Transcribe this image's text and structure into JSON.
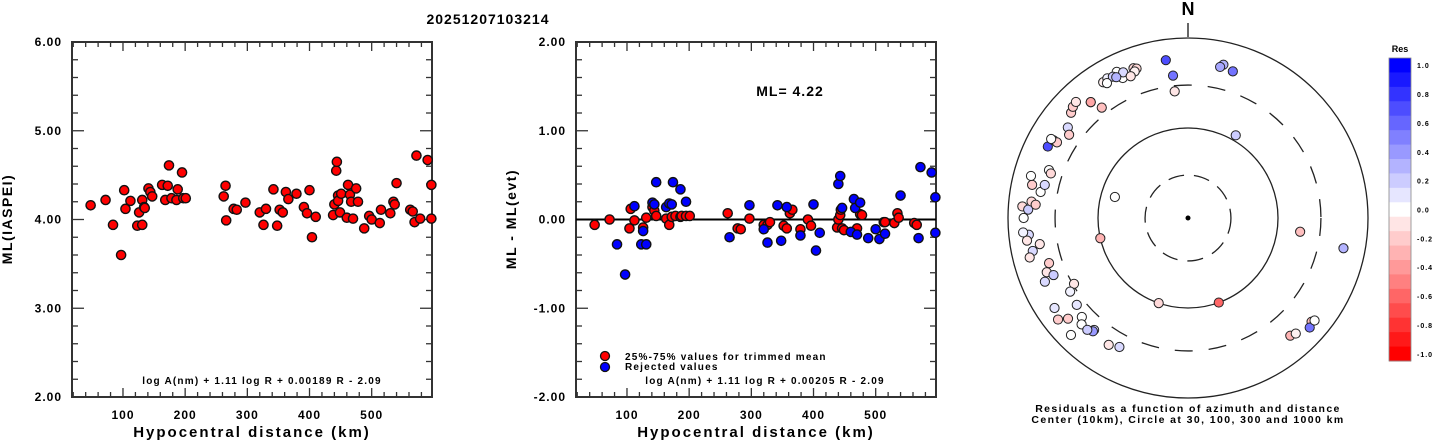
{
  "title": "20251207103214",
  "chart_data": [
    {
      "type": "scatter",
      "title": "",
      "xlabel": "Hypocentral distance (km)",
      "ylabel": "ML(IASPEI)",
      "xlim": [
        18,
        597
      ],
      "ylim": [
        2.0,
        6.0
      ],
      "xticks": [
        "100",
        "200",
        "300",
        "400",
        "500"
      ],
      "yticks": [
        "2.00",
        "3.00",
        "4.00",
        "5.00",
        "6.00"
      ],
      "annotation": "log A(nm) + 1.11 log R + 0.00189 R - 2.09",
      "series": [
        {
          "name": "ML values",
          "color": "#ff0000",
          "points": [
            [
              48,
              4.16
            ],
            [
              72,
              4.22
            ],
            [
              84,
              3.94
            ],
            [
              97,
              3.6
            ],
            [
              102,
              4.33
            ],
            [
              104,
              4.12
            ],
            [
              112,
              4.21
            ],
            [
              123,
              3.93
            ],
            [
              126,
              4.08
            ],
            [
              131,
              3.94
            ],
            [
              131,
              4.22
            ],
            [
              134,
              4.14
            ],
            [
              135,
              4.13
            ],
            [
              141,
              4.35
            ],
            [
              144,
              4.31
            ],
            [
              147,
              4.26
            ],
            [
              163,
              4.39
            ],
            [
              168,
              4.22
            ],
            [
              172,
              4.38
            ],
            [
              174,
              4.61
            ],
            [
              178,
              4.24
            ],
            [
              186,
              4.22
            ],
            [
              188,
              4.34
            ],
            [
              195,
              4.53
            ],
            [
              197,
              4.24
            ],
            [
              201,
              4.24
            ],
            [
              262,
              4.26
            ],
            [
              265,
              4.38
            ],
            [
              266,
              3.99
            ],
            [
              278,
              4.12
            ],
            [
              283,
              4.11
            ],
            [
              297,
              4.19
            ],
            [
              320,
              4.08
            ],
            [
              326,
              3.94
            ],
            [
              330,
              4.12
            ],
            [
              342,
              4.34
            ],
            [
              348,
              3.93
            ],
            [
              352,
              4.11
            ],
            [
              357,
              4.08
            ],
            [
              362,
              4.31
            ],
            [
              366,
              4.23
            ],
            [
              379,
              4.29
            ],
            [
              391,
              4.14
            ],
            [
              396,
              4.07
            ],
            [
              400,
              4.33
            ],
            [
              404,
              3.8
            ],
            [
              410,
              4.03
            ],
            [
              438,
              4.05
            ],
            [
              440,
              4.17
            ],
            [
              443,
              4.55
            ],
            [
              444,
              4.65
            ],
            [
              446,
              4.27
            ],
            [
              446,
              4.21
            ],
            [
              449,
              4.08
            ],
            [
              451,
              4.29
            ],
            [
              460,
              4.02
            ],
            [
              462,
              4.39
            ],
            [
              465,
              4.28
            ],
            [
              467,
              4.2
            ],
            [
              470,
              4.01
            ],
            [
              475,
              4.35
            ],
            [
              478,
              4.2
            ],
            [
              488,
              3.9
            ],
            [
              496,
              4.04
            ],
            [
              500,
              4.0
            ],
            [
              513,
              3.96
            ],
            [
              515,
              4.11
            ],
            [
              530,
              4.07
            ],
            [
              535,
              4.2
            ],
            [
              537,
              4.17
            ],
            [
              540,
              4.41
            ],
            [
              562,
              4.11
            ],
            [
              566,
              4.09
            ],
            [
              569,
              3.97
            ],
            [
              572,
              4.72
            ],
            [
              578,
              4.01
            ],
            [
              590,
              4.67
            ],
            [
              596,
              4.39
            ],
            [
              596,
              4.01
            ]
          ]
        }
      ]
    },
    {
      "type": "scatter",
      "title": "",
      "xlabel": "Hypocentral distance (km)",
      "ylabel": "ML - ML(evt)",
      "xlim": [
        18,
        597
      ],
      "ylim": [
        -2.0,
        2.0
      ],
      "xticks": [
        "100",
        "200",
        "300",
        "400",
        "500"
      ],
      "yticks": [
        "-2.00",
        "-1.00",
        "0.00",
        "1.00",
        "2.00"
      ],
      "reference_line": 0.0,
      "mean_label": "ML= 4.22",
      "annotation": "log A(nm) + 1.11 log R + 0.00205 R - 2.09",
      "legend": {
        "position": "bottom-left",
        "entries": [
          {
            "label": "25%-75% values for trimmed mean",
            "color": "#ff0000"
          },
          {
            "label": "Rejected values",
            "color": "#0000ff"
          }
        ]
      },
      "series": [
        {
          "name": "25%-75% values for trimmed mean",
          "color": "#ff0000",
          "points": [
            [
              48,
              -0.06
            ],
            [
              72,
              0.0
            ],
            [
              104,
              -0.1
            ],
            [
              106,
              0.12
            ],
            [
              112,
              -0.01
            ],
            [
              126,
              -0.09
            ],
            [
              131,
              0.02
            ],
            [
              141,
              0.14
            ],
            [
              144,
              0.1
            ],
            [
              147,
              0.04
            ],
            [
              163,
              0.01
            ],
            [
              168,
              -0.06
            ],
            [
              172,
              0.03
            ],
            [
              178,
              0.04
            ],
            [
              186,
              0.03
            ],
            [
              188,
              0.04
            ],
            [
              195,
              0.04
            ],
            [
              201,
              0.04
            ],
            [
              262,
              0.07
            ],
            [
              278,
              -0.1
            ],
            [
              283,
              -0.11
            ],
            [
              297,
              0.01
            ],
            [
              320,
              -0.06
            ],
            [
              326,
              -0.06
            ],
            [
              330,
              -0.03
            ],
            [
              352,
              -0.07
            ],
            [
              357,
              -0.1
            ],
            [
              362,
              0.07
            ],
            [
              366,
              0.11
            ],
            [
              379,
              -0.11
            ],
            [
              391,
              0.0
            ],
            [
              396,
              -0.07
            ],
            [
              438,
              -0.09
            ],
            [
              440,
              0.0
            ],
            [
              443,
              0.05
            ],
            [
              444,
              0.11
            ],
            [
              446,
              -0.1
            ],
            [
              449,
              -0.12
            ],
            [
              470,
              -0.1
            ],
            [
              475,
              0.06
            ],
            [
              478,
              0.05
            ],
            [
              513,
              -0.03
            ],
            [
              515,
              -0.03
            ],
            [
              530,
              -0.04
            ],
            [
              535,
              0.07
            ],
            [
              537,
              0.02
            ],
            [
              562,
              -0.04
            ],
            [
              566,
              -0.06
            ]
          ]
        },
        {
          "name": "Rejected values",
          "color": "#0000ff",
          "points": [
            [
              84,
              -0.28
            ],
            [
              97,
              -0.62
            ],
            [
              112,
              0.15
            ],
            [
              123,
              -0.28
            ],
            [
              126,
              -0.13
            ],
            [
              131,
              -0.28
            ],
            [
              141,
              0.19
            ],
            [
              144,
              0.17
            ],
            [
              147,
              0.42
            ],
            [
              163,
              0.14
            ],
            [
              168,
              0.18
            ],
            [
              172,
              0.17
            ],
            [
              174,
              0.42
            ],
            [
              186,
              0.34
            ],
            [
              195,
              0.2
            ],
            [
              265,
              -0.2
            ],
            [
              297,
              0.16
            ],
            [
              320,
              -0.11
            ],
            [
              326,
              -0.26
            ],
            [
              342,
              0.16
            ],
            [
              348,
              -0.24
            ],
            [
              357,
              0.14
            ],
            [
              379,
              -0.18
            ],
            [
              400,
              0.17
            ],
            [
              404,
              -0.35
            ],
            [
              410,
              -0.15
            ],
            [
              440,
              0.4
            ],
            [
              443,
              0.49
            ],
            [
              446,
              0.13
            ],
            [
              460,
              -0.14
            ],
            [
              465,
              0.23
            ],
            [
              467,
              0.13
            ],
            [
              470,
              -0.17
            ],
            [
              475,
              0.19
            ],
            [
              488,
              -0.21
            ],
            [
              500,
              -0.11
            ],
            [
              506,
              -0.22
            ],
            [
              515,
              -0.16
            ],
            [
              540,
              0.27
            ],
            [
              569,
              -0.21
            ],
            [
              572,
              0.59
            ],
            [
              590,
              0.53
            ],
            [
              596,
              0.25
            ],
            [
              596,
              -0.15
            ]
          ]
        }
      ]
    },
    {
      "type": "scatter",
      "title": "N",
      "subtitle": "Residuals as a function of azimuth and distance",
      "caption": "Center (10km), Circle at 30, 100, 300 and 1000 km",
      "projection": "polar-log-distance",
      "rings_km": [
        30,
        100,
        300,
        1000
      ],
      "center_km": 10,
      "colorbar": {
        "title": "Res",
        "range": [
          -1.0,
          1.0
        ],
        "ticks": [
          "1.0",
          "0.8",
          "0.6",
          "0.4",
          "0.2",
          "0.0",
          "-0.2",
          "-0.4",
          "-0.6",
          "-0.8",
          "-1.0"
        ],
        "position": "right",
        "high_color": "#0000ff",
        "mid_color": "#ffffff",
        "low_color": "#ff0000"
      },
      "points_azimuth_distance_residual": [
        [
          352,
          590,
          0.7
        ],
        [
          13,
          560,
          0.3
        ],
        [
          17,
          505,
          0.55
        ],
        [
          12,
          520,
          0.35
        ],
        [
          354,
          390,
          0.55
        ],
        [
          354,
          260,
          -0.1
        ],
        [
          30,
          115,
          0.2
        ],
        [
          97,
          180,
          -0.25
        ],
        [
          101,
          575,
          0.3
        ],
        [
          232,
          680,
          -0.2
        ],
        [
          225,
          690,
          0.0
        ],
        [
          139,
          540,
          -0.3
        ],
        [
          137,
          570,
          -0.05
        ],
        [
          130,
          620,
          -0.25
        ],
        [
          132,
          660,
          0.55
        ],
        [
          129,
          645,
          0.0
        ],
        [
          160,
          100,
          -0.6
        ],
        [
          199,
          100,
          -0.15
        ],
        [
          286,
          70,
          0.0
        ],
        [
          257,
          100,
          -0.3
        ],
        [
          249,
          480,
          -0.1
        ],
        [
          240,
          290,
          -0.1
        ],
        [
          232,
          370,
          0.1
        ],
        [
          227,
          410,
          0.0
        ],
        [
          220,
          420,
          0.15
        ],
        [
          238,
          350,
          0.05
        ],
        [
          220,
          440,
          0.4
        ],
        [
          225,
          470,
          0.0
        ],
        [
          208,
          420,
          0.15
        ],
        [
          212,
          460,
          -0.1
        ],
        [
          222,
          470,
          0.2
        ],
        [
          230,
          550,
          -0.2
        ],
        [
          236,
          615,
          0.1
        ],
        [
          252,
          420,
          -0.2
        ],
        [
          247,
          420,
          0.2
        ],
        [
          260,
          470,
          -0.1
        ],
        [
          246,
          550,
          0.15
        ],
        [
          258,
          580,
          0.15
        ],
        [
          264,
          600,
          0.15
        ],
        [
          262,
          640,
          -0.1
        ],
        [
          256,
          650,
          -0.1
        ],
        [
          265,
          690,
          0.05
        ],
        [
          274,
          700,
          -0.15
        ],
        [
          270,
          670,
          0.0
        ],
        [
          273,
          600,
          0.2
        ],
        [
          276,
          560,
          -0.15
        ],
        [
          275,
          500,
          -0.2
        ],
        [
          280,
          460,
          0.0
        ],
        [
          283,
          430,
          0.15
        ],
        [
          289,
          430,
          0.0
        ],
        [
          288,
          400,
          -0.15
        ],
        [
          282,
          590,
          -0.2
        ],
        [
          285,
          640,
          0.0
        ],
        [
          297,
          560,
          0.7
        ],
        [
          300,
          530,
          0.0
        ],
        [
          300,
          480,
          -0.2
        ],
        [
          300,
          570,
          0.0
        ],
        [
          307,
          470,
          0.15
        ],
        [
          305,
          410,
          -0.2
        ],
        [
          312,
          560,
          -0.2
        ],
        [
          314,
          600,
          -0.2
        ],
        [
          316,
          620,
          -0.1
        ],
        [
          320,
          480,
          0.15
        ],
        [
          320,
          480,
          -0.35
        ],
        [
          322,
          360,
          -0.25
        ],
        [
          335,
          520,
          0.0
        ],
        [
          328,
          600,
          -0.05
        ],
        [
          330,
          620,
          0.05
        ],
        [
          334,
          640,
          0.0
        ],
        [
          332,
          600,
          0.2
        ],
        [
          336,
          590,
          0.15
        ],
        [
          340,
          590,
          -0.15
        ],
        [
          341,
          570,
          -0.15
        ],
        [
          340,
          540,
          -0.05
        ],
        [
          338,
          500,
          -0.1
        ],
        [
          333,
          570,
          0.3
        ],
        [
          329,
          560,
          0.0
        ]
      ]
    }
  ]
}
